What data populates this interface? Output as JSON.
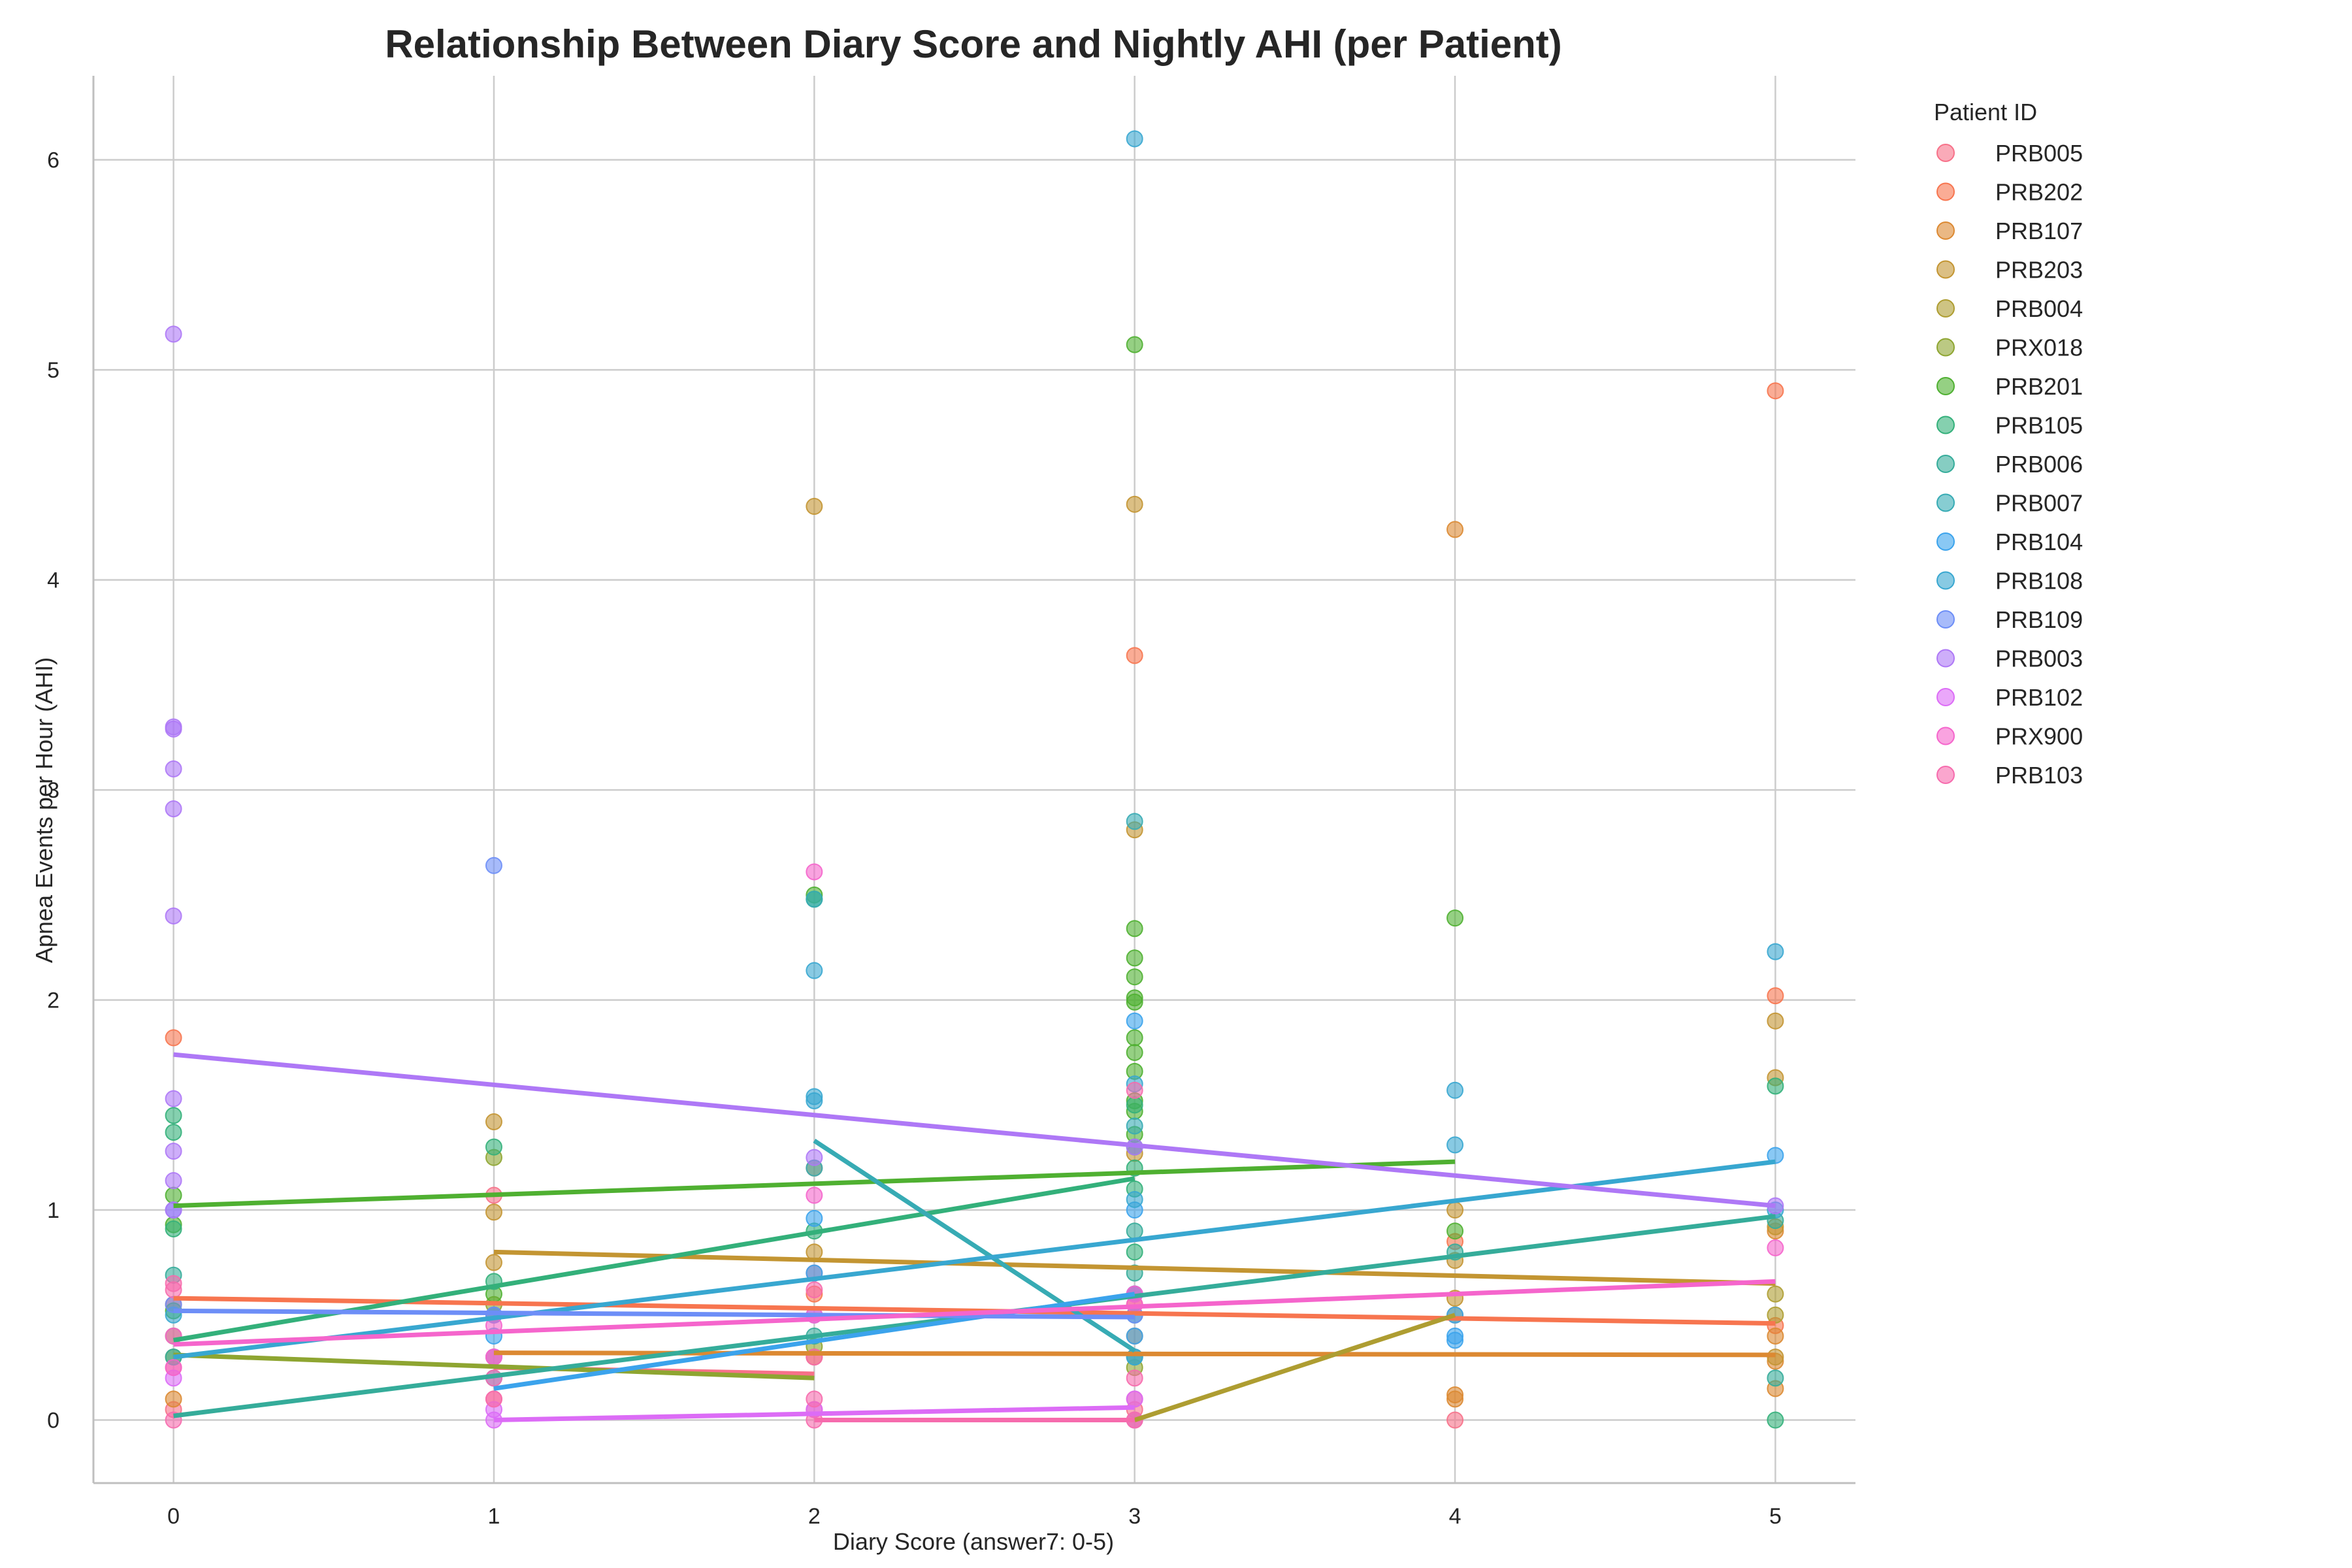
{
  "chart_data": {
    "type": "scatter",
    "title": "Relationship Between Diary Score and Nightly AHI (per Patient)",
    "xlabel": "Diary Score (answer7: 0-5)",
    "ylabel": "Apnea Events per Hour (AHI)",
    "xlim": [
      -0.25,
      5.25
    ],
    "ylim": [
      -0.3,
      6.4
    ],
    "xticks": [
      0,
      1,
      2,
      3,
      4,
      5
    ],
    "yticks": [
      0,
      1,
      2,
      3,
      4,
      5,
      6
    ],
    "grid": true,
    "legend": {
      "title": "Patient ID",
      "placement": "outside-right"
    },
    "series": [
      {
        "name": "PRB005",
        "color": "#f77189",
        "x": [
          0,
          0,
          1,
          1,
          2,
          2,
          3,
          3,
          4
        ],
        "y": [
          0.05,
          0.25,
          0.1,
          1.07,
          0.05,
          0.7,
          0.1,
          0.05,
          0.0
        ],
        "fit": [
          [
            1,
            0.25
          ],
          [
            2,
            0.22
          ]
        ]
      },
      {
        "name": "PRB202",
        "color": "#f7754f",
        "x": [
          0,
          0,
          1,
          2,
          3,
          3,
          4,
          5,
          5,
          5
        ],
        "y": [
          1.82,
          0.55,
          0.5,
          0.6,
          3.64,
          0.55,
          0.85,
          4.9,
          2.02,
          0.45
        ],
        "fit": [
          [
            0,
            0.58
          ],
          [
            5,
            0.46
          ]
        ]
      },
      {
        "name": "PRB107",
        "color": "#dc8932",
        "x": [
          0,
          1,
          2,
          2,
          3,
          3,
          4,
          4,
          4,
          5,
          5,
          5,
          5
        ],
        "y": [
          0.1,
          0.3,
          1.2,
          0.3,
          0.4,
          0.3,
          4.24,
          0.12,
          0.1,
          0.9,
          0.4,
          0.15,
          0.28
        ],
        "fit": [
          [
            1,
            0.32
          ],
          [
            5,
            0.31
          ]
        ]
      },
      {
        "name": "PRB203",
        "color": "#c39532",
        "x": [
          1,
          1,
          1,
          2,
          2,
          3,
          3,
          3,
          3,
          4,
          4,
          4,
          5,
          5,
          5,
          5
        ],
        "y": [
          1.42,
          0.99,
          0.75,
          4.35,
          0.8,
          4.36,
          2.81,
          1.27,
          0.6,
          1.0,
          0.76,
          0.58,
          1.9,
          1.63,
          0.92,
          0.3
        ],
        "fit": [
          [
            1,
            0.8
          ],
          [
            5,
            0.65
          ]
        ]
      },
      {
        "name": "PRB004",
        "color": "#ae9d31",
        "x": [
          3,
          4,
          5,
          5
        ],
        "y": [
          0.0,
          0.5,
          0.6,
          0.5
        ],
        "fit": [
          [
            3,
            0.0
          ],
          [
            4,
            0.5
          ]
        ]
      },
      {
        "name": "PRX018",
        "color": "#8ea531",
        "x": [
          0,
          0,
          1,
          1,
          2,
          3
        ],
        "y": [
          0.3,
          0.4,
          1.25,
          0.55,
          0.35,
          0.25
        ],
        "fit": [
          [
            0,
            0.31
          ],
          [
            2,
            0.2
          ]
        ]
      },
      {
        "name": "PRB201",
        "color": "#4fb031",
        "x": [
          0,
          0,
          0,
          1,
          2,
          3,
          3,
          3,
          3,
          3,
          3,
          3,
          3,
          3,
          3,
          3,
          3,
          4,
          4
        ],
        "y": [
          1.07,
          0.93,
          0.52,
          0.6,
          2.5,
          5.12,
          2.34,
          2.2,
          2.11,
          2.01,
          1.99,
          1.82,
          1.75,
          1.66,
          1.52,
          1.47,
          1.36,
          2.39,
          0.9
        ],
        "fit": [
          [
            0,
            1.02
          ],
          [
            4,
            1.23
          ]
        ]
      },
      {
        "name": "PRB105",
        "color": "#33b07a",
        "x": [
          0,
          0,
          0,
          1,
          1,
          2,
          2,
          3,
          3,
          3,
          3,
          3,
          5,
          5
        ],
        "y": [
          1.45,
          1.37,
          0.91,
          1.3,
          0.66,
          2.48,
          0.9,
          1.5,
          1.3,
          1.2,
          1.1,
          0.8,
          1.59,
          0.0
        ],
        "fit": [
          [
            0,
            0.38
          ],
          [
            3,
            1.15
          ]
        ]
      },
      {
        "name": "PRB006",
        "color": "#35ac9a",
        "x": [
          0,
          0,
          1,
          2,
          3,
          3,
          3,
          4,
          5,
          5
        ],
        "y": [
          0.69,
          0.3,
          0.5,
          0.4,
          0.9,
          0.7,
          0.5,
          0.8,
          0.95,
          0.2
        ],
        "fit": [
          [
            0,
            0.02
          ],
          [
            5,
            0.97
          ]
        ]
      },
      {
        "name": "PRB007",
        "color": "#37abb4",
        "x": [
          2,
          2,
          3,
          3,
          3,
          3
        ],
        "y": [
          2.48,
          1.2,
          2.85,
          1.4,
          0.6,
          0.3
        ],
        "fit": [
          [
            2,
            1.33
          ],
          [
            3,
            0.33
          ]
        ]
      },
      {
        "name": "PRB104",
        "color": "#3ba3ec",
        "x": [
          1,
          2,
          2,
          3,
          3,
          3,
          4,
          4,
          4,
          5
        ],
        "y": [
          0.4,
          0.96,
          0.7,
          1.9,
          1.0,
          0.4,
          0.5,
          0.38,
          0.4,
          1.26
        ],
        "fit": [
          [
            1,
            0.15
          ],
          [
            3,
            0.6
          ]
        ]
      },
      {
        "name": "PRB108",
        "color": "#38a7d0",
        "x": [
          0,
          1,
          2,
          2,
          2,
          3,
          3,
          3,
          3,
          4,
          4,
          5,
          5
        ],
        "y": [
          0.5,
          0.2,
          2.14,
          1.54,
          1.52,
          6.1,
          1.6,
          1.05,
          0.3,
          1.57,
          1.31,
          2.23,
          1.0
        ],
        "fit": [
          [
            0,
            0.3
          ],
          [
            5,
            1.23
          ]
        ]
      },
      {
        "name": "PRB109",
        "color": "#6d8ef7",
        "x": [
          0,
          0,
          1,
          1,
          2,
          3,
          3
        ],
        "y": [
          0.55,
          1.0,
          2.64,
          0.5,
          0.5,
          0.6,
          0.5
        ],
        "fit": [
          [
            0,
            0.52
          ],
          [
            3,
            0.49
          ]
        ]
      },
      {
        "name": "PRB003",
        "color": "#ae78f6",
        "x": [
          0,
          0,
          0,
          0,
          0,
          0,
          0,
          0,
          0,
          0,
          1,
          2,
          3,
          5
        ],
        "y": [
          5.17,
          3.3,
          3.29,
          3.1,
          2.91,
          2.4,
          1.53,
          1.28,
          1.14,
          1.0,
          0.3,
          1.25,
          1.3,
          1.02
        ],
        "fit": [
          [
            0,
            1.74
          ],
          [
            5,
            1.02
          ]
        ]
      },
      {
        "name": "PRB102",
        "color": "#dc6cf6",
        "x": [
          0,
          1,
          1,
          2,
          3,
          3
        ],
        "y": [
          0.2,
          0.0,
          0.05,
          0.05,
          0.1,
          0.0
        ],
        "fit": [
          [
            1,
            0.0
          ],
          [
            3,
            0.06
          ]
        ]
      },
      {
        "name": "PRX900",
        "color": "#f565cc",
        "x": [
          0,
          0,
          1,
          1,
          2,
          2,
          2,
          3,
          3,
          5
        ],
        "y": [
          0.4,
          0.25,
          0.3,
          0.45,
          2.61,
          0.5,
          1.07,
          0.55,
          0.6,
          0.82
        ],
        "fit": [
          [
            0,
            0.36
          ],
          [
            5,
            0.66
          ]
        ]
      },
      {
        "name": "PRB103",
        "color": "#f66bad",
        "x": [
          0,
          0,
          0,
          1,
          1,
          2,
          2,
          2,
          2,
          3,
          3,
          3
        ],
        "y": [
          0.0,
          0.65,
          0.62,
          0.1,
          0.2,
          0.62,
          0.3,
          0.1,
          0.0,
          1.57,
          0.2,
          0.0
        ],
        "fit": [
          [
            2,
            0.0
          ],
          [
            3,
            0.0
          ]
        ]
      }
    ]
  }
}
